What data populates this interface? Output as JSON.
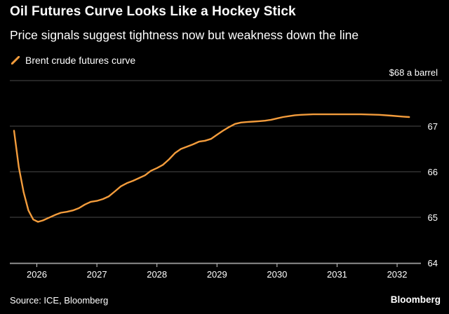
{
  "header": {
    "title": "Oil Futures Curve Looks Like a Hockey Stick",
    "subtitle": "Price signals suggest tightness now but weakness down the line"
  },
  "footer": {
    "source": "Source: ICE, Bloomberg",
    "brand": "Bloomberg"
  },
  "colors": {
    "background": "#000000",
    "line": "#f39c3c",
    "grid": "#4a4a4a",
    "text": "#ffffff"
  },
  "chart_data": {
    "type": "line",
    "title": "Oil Futures Curve Looks Like a Hockey Stick",
    "subtitle": "Price signals suggest tightness now but weakness down the line",
    "unit_label": "$68 a barrel",
    "ylim": [
      64,
      68
    ],
    "yticks": [
      64,
      65,
      66,
      67
    ],
    "xlim": [
      2025.55,
      2032.35
    ],
    "xticks": [
      {
        "value": 2026,
        "label": "2026"
      },
      {
        "value": 2027,
        "label": "2027"
      },
      {
        "value": 2028,
        "label": "2028"
      },
      {
        "value": 2029,
        "label": "2029"
      },
      {
        "value": 2030,
        "label": "2030"
      },
      {
        "value": 2031,
        "label": "2031"
      },
      {
        "value": 2032,
        "label": "2032"
      }
    ],
    "grid": "horizontal",
    "legend_position": "top-left",
    "series": [
      {
        "name": "Brent crude futures curve",
        "color": "#f39c3c",
        "points": [
          [
            2025.62,
            66.9
          ],
          [
            2025.7,
            66.1
          ],
          [
            2025.78,
            65.55
          ],
          [
            2025.86,
            65.15
          ],
          [
            2025.94,
            64.95
          ],
          [
            2026.02,
            64.9
          ],
          [
            2026.1,
            64.93
          ],
          [
            2026.2,
            64.99
          ],
          [
            2026.3,
            65.05
          ],
          [
            2026.4,
            65.1
          ],
          [
            2026.5,
            65.12
          ],
          [
            2026.6,
            65.15
          ],
          [
            2026.7,
            65.2
          ],
          [
            2026.8,
            65.28
          ],
          [
            2026.9,
            65.34
          ],
          [
            2027.0,
            65.36
          ],
          [
            2027.1,
            65.4
          ],
          [
            2027.2,
            65.46
          ],
          [
            2027.3,
            65.57
          ],
          [
            2027.4,
            65.68
          ],
          [
            2027.5,
            65.75
          ],
          [
            2027.6,
            65.8
          ],
          [
            2027.7,
            65.86
          ],
          [
            2027.8,
            65.92
          ],
          [
            2027.9,
            66.02
          ],
          [
            2028.0,
            66.08
          ],
          [
            2028.1,
            66.15
          ],
          [
            2028.2,
            66.27
          ],
          [
            2028.3,
            66.41
          ],
          [
            2028.4,
            66.5
          ],
          [
            2028.5,
            66.55
          ],
          [
            2028.6,
            66.6
          ],
          [
            2028.7,
            66.66
          ],
          [
            2028.8,
            66.68
          ],
          [
            2028.9,
            66.72
          ],
          [
            2029.0,
            66.81
          ],
          [
            2029.1,
            66.9
          ],
          [
            2029.2,
            66.98
          ],
          [
            2029.3,
            67.05
          ],
          [
            2029.4,
            67.08
          ],
          [
            2029.5,
            67.09
          ],
          [
            2029.6,
            67.1
          ],
          [
            2029.7,
            67.11
          ],
          [
            2029.8,
            67.12
          ],
          [
            2029.9,
            67.14
          ],
          [
            2030.0,
            67.17
          ],
          [
            2030.1,
            67.2
          ],
          [
            2030.2,
            67.22
          ],
          [
            2030.3,
            67.24
          ],
          [
            2030.4,
            67.25
          ],
          [
            2030.6,
            67.26
          ],
          [
            2030.8,
            67.26
          ],
          [
            2031.0,
            67.26
          ],
          [
            2031.2,
            67.26
          ],
          [
            2031.4,
            67.26
          ],
          [
            2031.7,
            67.25
          ],
          [
            2031.9,
            67.23
          ],
          [
            2032.1,
            67.21
          ],
          [
            2032.2,
            67.2
          ]
        ]
      }
    ]
  }
}
